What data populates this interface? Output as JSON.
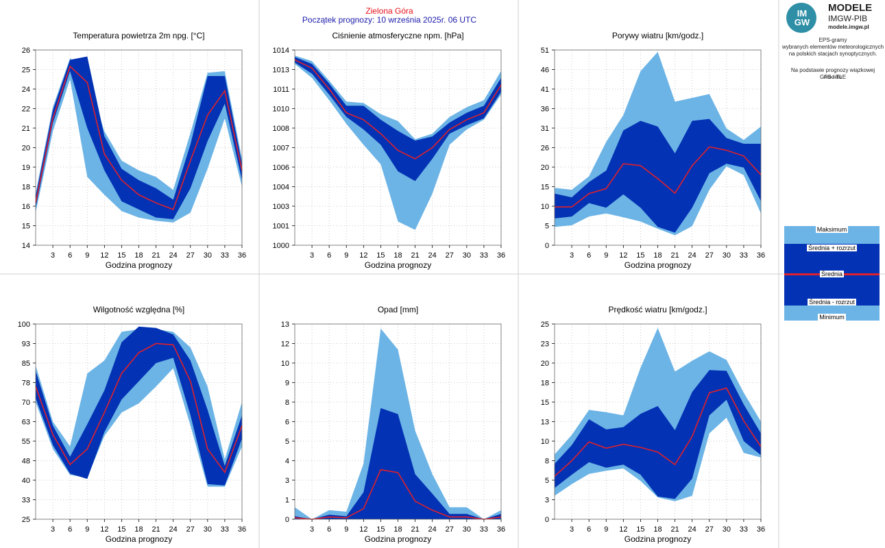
{
  "header": {
    "station": "Zielona Góra",
    "forecast_start": "Początek prognozy: 10 września 2025r. 06 UTC"
  },
  "branding": {
    "logo_text": "IM GW",
    "title": "MODELE",
    "subtitle": "IMGW-PIB",
    "url": "modele.imgw.pl"
  },
  "info": {
    "line1": "EPS-gramy",
    "line2": "wybranych elementów meteorologicznych",
    "line3": "na polskich stacjach  synoptycznych.",
    "line4": "Na podstawie prognozy wiązkowej modelu",
    "line5": "GFS - TLE"
  },
  "legend": {
    "max": "Maksimum",
    "mean_plus": "Średnia + rozrzut",
    "mean": "Średnia",
    "mean_minus": "Średnia - rozrzut",
    "min": "Minimum"
  },
  "colors": {
    "outer_band": "#6cb4e6",
    "inner_band": "#0332b4",
    "mean_line": "#e2202a",
    "grid": "#bbbbbb"
  },
  "chart_data": [
    {
      "type": "area",
      "title": "Temperatura powietrza 2m npg. [°C]",
      "xlabel": "Godzina prognozy",
      "x": [
        0,
        3,
        6,
        9,
        12,
        15,
        18,
        21,
        24,
        27,
        30,
        33,
        36
      ],
      "x_ticks": [
        "3",
        "6",
        "9",
        "12",
        "15",
        "18",
        "21",
        "24",
        "27",
        "30",
        "33",
        "36"
      ],
      "y_ticks": [
        "14",
        "15",
        "16",
        "18",
        "19",
        "20",
        "21",
        "22",
        "24",
        "25",
        "26"
      ],
      "ylim": [
        14,
        26
      ],
      "grid": true,
      "series": [
        {
          "name": "Maksimum",
          "values": [
            17.2,
            22.5,
            25.5,
            24.3,
            21.0,
            19.2,
            18.6,
            18.2,
            17.4,
            20.9,
            24.6,
            24.7,
            19.3
          ]
        },
        {
          "name": "Średnia + rozrzut",
          "values": [
            17.0,
            22.3,
            25.4,
            25.6,
            20.7,
            18.7,
            18.0,
            17.5,
            16.8,
            20.2,
            24.4,
            24.4,
            19.0
          ]
        },
        {
          "name": "Średnia",
          "values": [
            16.6,
            21.8,
            25.0,
            24.0,
            19.6,
            18.0,
            17.1,
            16.6,
            16.2,
            19.2,
            22.0,
            23.5,
            18.6
          ]
        },
        {
          "name": "Średnia - rozrzut",
          "values": [
            16.3,
            21.5,
            24.7,
            21.2,
            18.6,
            16.7,
            16.2,
            15.7,
            15.6,
            17.5,
            20.4,
            22.7,
            18.0
          ]
        },
        {
          "name": "Minimum",
          "values": [
            16.0,
            21.0,
            24.2,
            18.2,
            17.1,
            16.1,
            15.7,
            15.5,
            15.4,
            16.0,
            18.7,
            21.8,
            17.6
          ]
        }
      ]
    },
    {
      "type": "area",
      "title": "Ciśnienie atmosferyczne npm. [hPa]",
      "xlabel": "Godzina prognozy",
      "x": [
        0,
        3,
        6,
        9,
        12,
        15,
        18,
        21,
        24,
        27,
        30,
        33,
        36
      ],
      "x_ticks": [
        "3",
        "6",
        "9",
        "12",
        "15",
        "18",
        "21",
        "24",
        "27",
        "30",
        "33",
        "36"
      ],
      "y_ticks": [
        "1000",
        "1001",
        "1003",
        "1004",
        "1006",
        "1007",
        "1008",
        "1010",
        "1011",
        "1013",
        "1014"
      ],
      "ylim": [
        1000,
        1014
      ],
      "grid": true,
      "series": [
        {
          "name": "Maksimum",
          "values": [
            1013.6,
            1013.2,
            1011.8,
            1010.3,
            1010.2,
            1009.4,
            1008.9,
            1007.6,
            1008.0,
            1009.2,
            1009.9,
            1010.4,
            1012.5
          ]
        },
        {
          "name": "Średnia + rozrzut",
          "values": [
            1013.5,
            1013.0,
            1011.6,
            1010.0,
            1010.0,
            1009.0,
            1008.2,
            1007.5,
            1007.8,
            1008.8,
            1009.5,
            1010.0,
            1012.0
          ]
        },
        {
          "name": "Średnia",
          "values": [
            1013.3,
            1012.7,
            1011.2,
            1009.5,
            1009.0,
            1008.0,
            1006.8,
            1006.2,
            1007.0,
            1008.3,
            1009.0,
            1009.5,
            1011.5
          ]
        },
        {
          "name": "Średnia - rozrzut",
          "values": [
            1013.1,
            1012.3,
            1010.8,
            1009.2,
            1008.3,
            1007.2,
            1005.3,
            1004.6,
            1006.2,
            1008.0,
            1008.6,
            1009.1,
            1011.0
          ]
        },
        {
          "name": "Minimum",
          "values": [
            1013.0,
            1012.0,
            1010.4,
            1008.7,
            1007.2,
            1005.8,
            1001.7,
            1001.1,
            1003.7,
            1007.2,
            1008.3,
            1009.0,
            1010.8
          ]
        }
      ]
    },
    {
      "type": "area",
      "title": "Porywy wiatru [km/godz.]",
      "xlabel": "Godzina prognozy",
      "x": [
        0,
        3,
        6,
        9,
        12,
        15,
        18,
        21,
        24,
        27,
        30,
        33,
        36
      ],
      "x_ticks": [
        "3",
        "6",
        "9",
        "12",
        "15",
        "18",
        "21",
        "24",
        "27",
        "30",
        "33",
        "36"
      ],
      "y_ticks": [
        "0",
        "5",
        "10",
        "15",
        "20",
        "26",
        "31",
        "36",
        "41",
        "46",
        "51"
      ],
      "ylim": [
        0,
        51
      ],
      "grid": true,
      "series": [
        {
          "name": "Maksimum",
          "values": [
            15.0,
            14.5,
            18.0,
            27.0,
            34.0,
            45.5,
            50.5,
            37.5,
            38.5,
            39.5,
            30.5,
            27.5,
            31.0
          ]
        },
        {
          "name": "Średnia + rozrzut",
          "values": [
            13.5,
            12.5,
            16.5,
            19.5,
            30.0,
            32.5,
            31.0,
            24.0,
            32.5,
            33.0,
            28.0,
            26.5,
            26.5
          ]
        },
        {
          "name": "Średnia",
          "values": [
            10.0,
            10.0,
            13.5,
            14.8,
            21.3,
            20.8,
            17.4,
            13.6,
            20.8,
            25.7,
            24.8,
            23.3,
            18.4
          ]
        },
        {
          "name": "Średnia - rozrzut",
          "values": [
            7.0,
            7.5,
            11.0,
            9.8,
            13.3,
            9.8,
            4.8,
            3.3,
            9.8,
            18.8,
            21.3,
            20.3,
            11.5
          ]
        },
        {
          "name": "Minimum",
          "values": [
            4.8,
            5.2,
            7.5,
            8.3,
            7.3,
            6.2,
            4.3,
            2.6,
            5.0,
            14.5,
            20.6,
            18.3,
            8.3
          ]
        }
      ]
    },
    {
      "type": "area",
      "title": "Wilgotność względna [%]",
      "xlabel": "Godzina prognozy",
      "x": [
        0,
        3,
        6,
        9,
        12,
        15,
        18,
        21,
        24,
        27,
        30,
        33,
        36
      ],
      "x_ticks": [
        "3",
        "6",
        "9",
        "12",
        "15",
        "18",
        "21",
        "24",
        "27",
        "30",
        "33",
        "36"
      ],
      "y_ticks": [
        "25",
        "33",
        "40",
        "48",
        "55",
        "63",
        "70",
        "78",
        "85",
        "93",
        "100"
      ],
      "ylim": [
        25,
        100
      ],
      "grid": true,
      "series": [
        {
          "name": "Maksimum",
          "values": [
            84.0,
            62.5,
            53.0,
            81.0,
            86.0,
            97.0,
            98.0,
            98.0,
            97.0,
            91.0,
            76.0,
            48.0,
            70.0
          ]
        },
        {
          "name": "Średnia + rozrzut",
          "values": [
            82.0,
            61.0,
            49.0,
            61.5,
            74.5,
            93.0,
            99.0,
            98.5,
            96.0,
            86.0,
            67.0,
            45.5,
            65.0
          ]
        },
        {
          "name": "Średnia",
          "values": [
            76.0,
            57.5,
            46.0,
            52.0,
            66.0,
            81.0,
            89.0,
            92.5,
            92.0,
            78.0,
            52.0,
            43.0,
            61.0
          ]
        },
        {
          "name": "Średnia - rozrzut",
          "values": [
            71.5,
            53.5,
            42.5,
            40.5,
            58.5,
            71.0,
            78.0,
            85.0,
            87.0,
            65.0,
            38.5,
            38.0,
            56.0
          ]
        },
        {
          "name": "Minimum",
          "values": [
            70.0,
            52.0,
            42.0,
            41.0,
            57.0,
            66.0,
            69.5,
            76.0,
            83.0,
            61.0,
            37.5,
            37.5,
            53.0
          ]
        }
      ]
    },
    {
      "type": "area",
      "title": "Opad [mm]",
      "xlabel": "Godzina prognozy",
      "x": [
        0,
        3,
        6,
        9,
        12,
        15,
        18,
        21,
        24,
        27,
        30,
        33,
        36
      ],
      "x_ticks": [
        "3",
        "6",
        "9",
        "12",
        "15",
        "18",
        "21",
        "24",
        "27",
        "30",
        "33",
        "36"
      ],
      "y_ticks": [
        "0",
        "1",
        "3",
        "4",
        "5",
        "6",
        "8",
        "9",
        "10",
        "12",
        "13"
      ],
      "ylim": [
        0,
        13
      ],
      "grid": true,
      "series": [
        {
          "name": "Maksimum",
          "values": [
            0.8,
            0.0,
            0.6,
            0.5,
            3.7,
            12.7,
            11.3,
            5.9,
            3.0,
            0.8,
            0.8,
            0.0,
            0.6
          ]
        },
        {
          "name": "Średnia + rozrzut",
          "values": [
            0.2,
            0.0,
            0.3,
            0.2,
            1.8,
            7.4,
            7.0,
            3.0,
            1.7,
            0.35,
            0.35,
            0.0,
            0.35
          ]
        },
        {
          "name": "Średnia",
          "values": [
            0.1,
            0.0,
            0.15,
            0.1,
            0.7,
            3.3,
            3.1,
            1.2,
            0.6,
            0.15,
            0.15,
            0.0,
            0.15
          ]
        },
        {
          "name": "Średnia - rozrzut",
          "values": [
            0.0,
            0.0,
            0.0,
            0.0,
            0.0,
            0.0,
            0.0,
            0.0,
            0.0,
            0.0,
            0.0,
            0.0,
            0.0
          ]
        },
        {
          "name": "Minimum",
          "values": [
            0.0,
            0.0,
            0.0,
            0.0,
            0.0,
            0.0,
            0.0,
            0.0,
            0.0,
            0.0,
            0.0,
            0.0,
            0.0
          ]
        }
      ]
    },
    {
      "type": "area",
      "title": "Prędkość wiatru [km/godz.]",
      "xlabel": "Godzina prognozy",
      "x": [
        0,
        3,
        6,
        9,
        12,
        15,
        18,
        21,
        24,
        27,
        30,
        33,
        36
      ],
      "x_ticks": [
        "3",
        "6",
        "9",
        "12",
        "15",
        "18",
        "21",
        "24",
        "27",
        "30",
        "33",
        "36"
      ],
      "y_ticks": [
        "0",
        "3",
        "5",
        "8",
        "10",
        "13",
        "15",
        "18",
        "20",
        "23",
        "25"
      ],
      "ylim": [
        0,
        25
      ],
      "grid": true,
      "series": [
        {
          "name": "Maksimum",
          "values": [
            8.3,
            10.8,
            14.0,
            13.7,
            13.3,
            19.4,
            24.5,
            18.9,
            20.3,
            21.5,
            20.4,
            16.2,
            12.5
          ]
        },
        {
          "name": "Średnia + rozrzut",
          "values": [
            7.1,
            9.5,
            12.8,
            11.5,
            11.8,
            13.5,
            14.5,
            11.4,
            16.3,
            19.1,
            19.0,
            14.7,
            11.0
          ]
        },
        {
          "name": "Średnia",
          "values": [
            5.5,
            7.5,
            9.9,
            9.1,
            9.6,
            9.2,
            8.6,
            7.0,
            10.6,
            16.2,
            16.8,
            12.6,
            9.3
          ]
        },
        {
          "name": "Średnia - rozrzut",
          "values": [
            4.0,
            5.7,
            7.3,
            6.6,
            7.0,
            5.7,
            2.9,
            2.6,
            5.2,
            13.3,
            15.3,
            10.0,
            8.2
          ]
        },
        {
          "name": "Minimum",
          "values": [
            3.0,
            4.5,
            5.8,
            6.2,
            6.5,
            4.9,
            2.8,
            2.3,
            3.0,
            11.0,
            13.0,
            8.5,
            7.9
          ]
        }
      ]
    }
  ]
}
